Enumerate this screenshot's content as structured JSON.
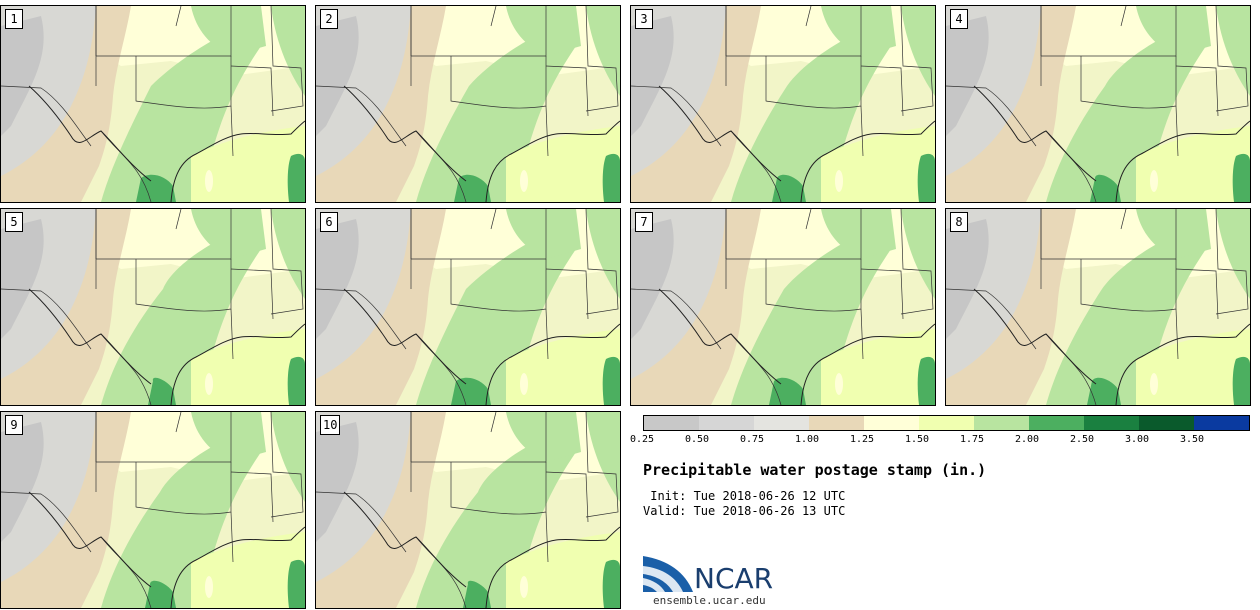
{
  "panels": [
    {
      "label": "1"
    },
    {
      "label": "2"
    },
    {
      "label": "3"
    },
    {
      "label": "4"
    },
    {
      "label": "5"
    },
    {
      "label": "6"
    },
    {
      "label": "7"
    },
    {
      "label": "8"
    },
    {
      "label": "9"
    },
    {
      "label": "10"
    }
  ],
  "colorbar": {
    "colors": [
      "#c8c8c8",
      "#d6d6d6",
      "#e4e4e0",
      "#e8d8b8",
      "#ffffd8",
      "#f0ffb0",
      "#b8e4a0",
      "#4caf60",
      "#1a8040",
      "#0a5a2c",
      "#0a3aa0"
    ],
    "ticks": [
      "0.25",
      "0.50",
      "0.75",
      "1.00",
      "1.25",
      "1.50",
      "1.75",
      "2.00",
      "2.50",
      "3.00",
      "3.50"
    ]
  },
  "title": "Precipitable water postage stamp (in.)",
  "init": " Init: Tue 2018-06-26 12 UTC",
  "valid": "Valid: Tue 2018-06-26 13 UTC",
  "logo": {
    "name": "NCAR",
    "url": "ensemble.ucar.edu"
  }
}
